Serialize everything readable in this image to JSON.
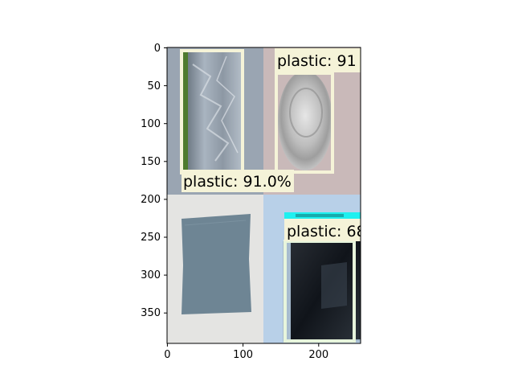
{
  "axes": {
    "x_ticks": [
      "0",
      "100",
      "200"
    ],
    "y_ticks": [
      "0",
      "50",
      "100",
      "150",
      "200",
      "250",
      "300",
      "350"
    ],
    "xlim": [
      0,
      256
    ],
    "ylim": [
      392,
      0
    ]
  },
  "tiles": [
    {
      "id": "top-left",
      "content": "crumpled clear plastic bag on grey background",
      "color": "#9aa5b2"
    },
    {
      "id": "top-right",
      "content": "clear plastic cup viewed from above on pink background",
      "color": "#c9b9b9"
    },
    {
      "id": "bottom-left",
      "content": "grey-blue paper sheet on white background",
      "color": "#e4e4e2"
    },
    {
      "id": "bottom-right",
      "content": "dark glass bottle on light blue background",
      "color": "#b8d0e8"
    }
  ],
  "detections": [
    {
      "label": "plastic: 91.0%",
      "box_color": "#f5f3d8"
    },
    {
      "label": "plastic: 91",
      "box_color": "#f5f3d8"
    },
    {
      "label": "plastic: 68",
      "box_color": "#e7f5dc"
    },
    {
      "label": "",
      "box_color": "#1ef0f0"
    }
  ]
}
